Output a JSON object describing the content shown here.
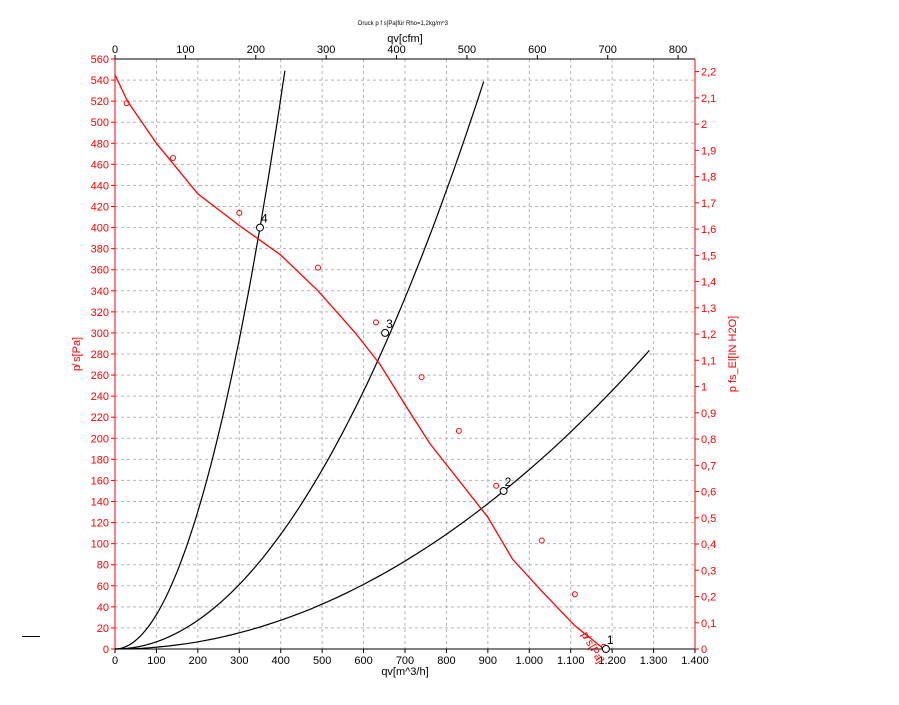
{
  "chart_data": {
    "type": "line",
    "title": "Druck p f s[Pa]für Rho=1,2kg/m^3",
    "xlabel_bottom": "qv[m^3/h]",
    "xlabel_top": "qv[cfm]",
    "ylabel_left": "p̸ s[Pa]",
    "ylabel_right": "p fs_El[IN H2O]",
    "fan_curve_label": "p̸ s[Pa]",
    "xlim": [
      0,
      1400
    ],
    "ylim": [
      0,
      560
    ],
    "x_top_lim": [
      0,
      824
    ],
    "y_right_lim": [
      0,
      2.248
    ],
    "x_ticks": [
      {
        "v": 0,
        "label": "0"
      },
      {
        "v": 100,
        "label": "100"
      },
      {
        "v": 200,
        "label": "200"
      },
      {
        "v": 300,
        "label": "300"
      },
      {
        "v": 400,
        "label": "400"
      },
      {
        "v": 500,
        "label": "500"
      },
      {
        "v": 600,
        "label": "600"
      },
      {
        "v": 700,
        "label": "700"
      },
      {
        "v": 800,
        "label": "800"
      },
      {
        "v": 900,
        "label": "900"
      },
      {
        "v": 1000,
        "label": "1.000"
      },
      {
        "v": 1100,
        "label": "1.100"
      },
      {
        "v": 1200,
        "label": "1.200"
      },
      {
        "v": 1300,
        "label": "1.300"
      },
      {
        "v": 1400,
        "label": "1.400"
      }
    ],
    "x_top_ticks": [
      "0",
      "100",
      "200",
      "300",
      "400",
      "500",
      "600",
      "700",
      "800"
    ],
    "y_ticks": [
      0,
      20,
      40,
      60,
      80,
      100,
      120,
      140,
      160,
      180,
      200,
      220,
      240,
      260,
      280,
      300,
      320,
      340,
      360,
      380,
      400,
      420,
      440,
      460,
      480,
      500,
      520,
      540,
      560
    ],
    "y_right_ticks": [
      "0",
      "0,1",
      "0,2",
      "0,3",
      "0,4",
      "0,5",
      "0,6",
      "0,7",
      "0,8",
      "0,9",
      "1",
      "1,1",
      "1,2",
      "1,3",
      "1,4",
      "1,5",
      "1,6",
      "1,7",
      "1,8",
      "1,9",
      "2",
      "2,1",
      "2,2"
    ],
    "grid": true,
    "colors": {
      "fan_curve": "#ff0000",
      "system_curves": "#000000",
      "axis_left": "#ff0000",
      "axis_right": "#ff0000",
      "grid": "#b4b4b4"
    },
    "fan_curve": {
      "x": [
        0,
        30,
        100,
        200,
        300,
        400,
        490,
        580,
        640,
        700,
        760,
        830,
        900,
        960,
        1030,
        1110,
        1180
      ],
      "y": [
        545,
        520,
        480,
        432,
        402,
        374,
        340,
        300,
        270,
        232,
        195,
        160,
        125,
        85,
        55,
        22,
        0
      ]
    },
    "fan_markers": {
      "x": [
        28,
        140,
        300,
        490,
        630,
        740,
        830,
        920,
        1030,
        1110,
        1180
      ],
      "y": [
        518,
        466,
        414,
        362,
        310,
        258,
        207,
        155,
        103,
        52,
        2
      ]
    },
    "system_curves": [
      {
        "k": 0.003265,
        "x_max": 410
      },
      {
        "k": 0.00068,
        "x_max": 890
      },
      {
        "k": 0.0001703,
        "x_max": 1290
      }
    ],
    "operating_points": [
      {
        "label": "1",
        "x": 1185,
        "y": 0
      },
      {
        "label": "2",
        "x": 938,
        "y": 150
      },
      {
        "label": "3",
        "x": 652,
        "y": 300
      },
      {
        "label": "4",
        "x": 350,
        "y": 400
      }
    ]
  }
}
